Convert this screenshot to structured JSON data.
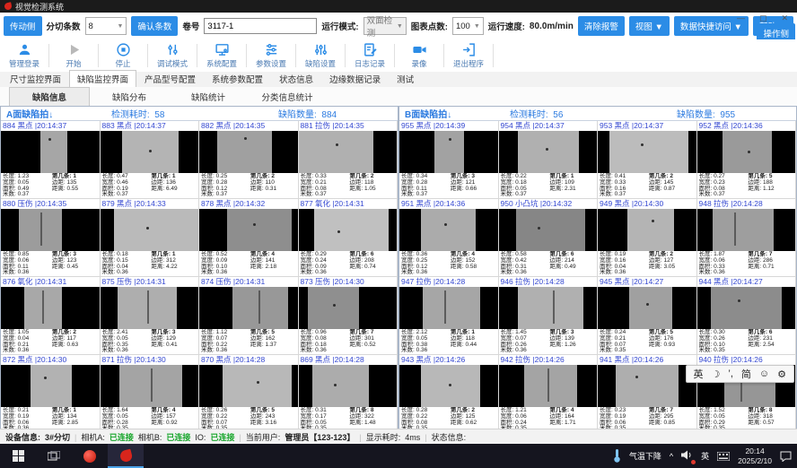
{
  "window": {
    "title": "视觉检测系统",
    "minimize": "—",
    "maximize": "▢",
    "close": "✕"
  },
  "toolbar": {
    "drive_side": "传动侧",
    "slit_count_label": "分切条数",
    "slit_count_value": "8",
    "confirm_count": "确认条数",
    "roll_label": "卷号",
    "roll_value": "3117-1",
    "run_mode_label": "运行模式:",
    "run_mode_value": "双面检测",
    "chart_points_label": "图表点数:",
    "chart_points_value": "100",
    "speed_label": "运行速度:",
    "speed_value": "80.0m/min",
    "clear_alarm": "清除报警",
    "view_menu": "视图 ▼",
    "data_access_menu": "数据快捷访问 ▼",
    "help_menu": "帮助 ▼",
    "operator_side": "操作侧"
  },
  "actionbar": {
    "items": [
      {
        "icon": "user-icon",
        "label": "管理登录"
      },
      {
        "icon": "play-icon",
        "label": "开始"
      },
      {
        "icon": "stop-icon",
        "label": "停止"
      },
      {
        "icon": "debug-icon",
        "label": "调试模式"
      },
      {
        "icon": "monitor-icon",
        "label": "系统配置"
      },
      {
        "icon": "sliders-h-icon",
        "label": "参数设置"
      },
      {
        "icon": "sliders-v-icon",
        "label": "缺陷设置"
      },
      {
        "icon": "journal-icon",
        "label": "日志记录"
      },
      {
        "icon": "camera-icon",
        "label": "录像"
      },
      {
        "icon": "exit-icon",
        "label": "退出程序"
      }
    ]
  },
  "tabs": {
    "active": 1,
    "items": [
      "尺寸监控界面",
      "缺陷监控界面",
      "产品型号配置",
      "系统参数配置",
      "状态信息",
      "边缘数据记录",
      "测试"
    ]
  },
  "subtabs": {
    "active": 0,
    "items": [
      "缺陷信息",
      "缺陷分布",
      "缺陷统计",
      "分类信息统计"
    ]
  },
  "meta_labels": {
    "length": "长度:",
    "width": "宽度:",
    "area": "面积:",
    "meter": "米数:",
    "strip": "第几条:",
    "margin": "边距:",
    "distance": "距离:"
  },
  "panel_labels": {
    "time_label": "检测耗时:",
    "count_label": "缺陷数量:",
    "sort_icon": "↓"
  },
  "panels": [
    {
      "title": "A面缺陷拍",
      "time_value": "58",
      "count_value": "884",
      "cells": [
        {
          "id": "884",
          "type": "黑点",
          "time": "20:14:37",
          "len": "1.23",
          "wid": "0.05",
          "area": "0.49",
          "meter": "0.37",
          "strip": "1",
          "margin": "135",
          "dist": "0.55",
          "img": {
            "bx": 40,
            "bw": 28,
            "bc": "#a6a6a6",
            "dot": [
              48,
              18
            ]
          }
        },
        {
          "id": "883",
          "type": "黑点",
          "time": "20:14:37",
          "len": "0.47",
          "wid": "0.46",
          "area": "0.19",
          "meter": "0.37",
          "strip": "1",
          "margin": "136",
          "dist": "6.49",
          "img": {
            "bx": 22,
            "bw": 58,
            "bc": "#b4b4b4",
            "dot": [
              50,
              45
            ]
          }
        },
        {
          "id": "882",
          "type": "黑点",
          "time": "20:14:35",
          "len": "0.25",
          "wid": "0.28",
          "area": "0.12",
          "meter": "0.37",
          "strip": "2",
          "margin": "110",
          "dist": "0.31",
          "img": {
            "bx": 18,
            "bw": 56,
            "bc": "#a0a0a0",
            "dot": [
              46,
              14
            ]
          }
        },
        {
          "id": "881",
          "type": "拉伤",
          "time": "20:14:35",
          "len": "0.33",
          "wid": "0.21",
          "area": "0.08",
          "meter": "0.37",
          "strip": "2",
          "margin": "118",
          "dist": "1.05",
          "img": {
            "bx": 0,
            "bw": 76,
            "bc": "#b0b0b0",
            "dot": [
              38,
              30
            ]
          }
        },
        {
          "id": "880",
          "type": "压伤",
          "time": "20:14:35",
          "len": "0.85",
          "wid": "0.06",
          "area": "0.11",
          "meter": "0.36",
          "strip": "3",
          "margin": "123",
          "dist": "0.45",
          "img": {
            "bx": 18,
            "bw": 44,
            "bc": "#9c9c9c",
            "scratch": 40
          }
        },
        {
          "id": "879",
          "type": "黑点",
          "time": "20:14:33",
          "len": "0.18",
          "wid": "0.15",
          "area": "0.04",
          "meter": "0.36",
          "strip": "1",
          "margin": "312",
          "dist": "4.22",
          "img": {
            "bx": 14,
            "bw": 86,
            "bc": "#bababa",
            "dot": [
              47,
              42
            ]
          }
        },
        {
          "id": "878",
          "type": "黑点",
          "time": "20:14:32",
          "len": "0.52",
          "wid": "0.09",
          "area": "0.10",
          "meter": "0.36",
          "strip": "4",
          "margin": "141",
          "dist": "2.18",
          "img": {
            "bx": 28,
            "bw": 66,
            "bc": "#8e8e8e",
            "dot": [
              55,
              35
            ]
          }
        },
        {
          "id": "877",
          "type": "氧化",
          "time": "20:14:31",
          "len": "0.29",
          "wid": "0.24",
          "area": "0.09",
          "meter": "0.36",
          "strip": "6",
          "margin": "208",
          "dist": "0.74",
          "img": {
            "bx": 16,
            "bw": 76,
            "bc": "#c0c0c0",
            "dot": [
              40,
              50
            ]
          }
        },
        {
          "id": "876",
          "type": "氧化",
          "time": "20:14:31",
          "len": "1.05",
          "wid": "0.04",
          "area": "0.21",
          "meter": "0.36",
          "strip": "2",
          "margin": "117",
          "dist": "0.63",
          "img": {
            "bx": 24,
            "bw": 38,
            "bc": "#a8a8a8",
            "scratch": 42
          }
        },
        {
          "id": "875",
          "type": "压伤",
          "time": "20:14:31",
          "len": "2.41",
          "wid": "0.05",
          "area": "0.35",
          "meter": "0.36",
          "strip": "3",
          "margin": "129",
          "dist": "0.41",
          "img": {
            "bx": 18,
            "bw": 60,
            "bc": "#aeaeae",
            "scratch": 48
          }
        },
        {
          "id": "874",
          "type": "压伤",
          "time": "20:14:31",
          "len": "1.12",
          "wid": "0.07",
          "area": "0.22",
          "meter": "0.36",
          "strip": "5",
          "margin": "162",
          "dist": "1.37",
          "img": {
            "bx": 34,
            "bw": 56,
            "bc": "#989898",
            "scratch": 60
          }
        },
        {
          "id": "873",
          "type": "压伤",
          "time": "20:14:30",
          "len": "0.96",
          "wid": "0.08",
          "area": "0.18",
          "meter": "0.36",
          "strip": "7",
          "margin": "301",
          "dist": "0.52",
          "img": {
            "bx": 10,
            "bw": 52,
            "bc": "#8f8f8f",
            "dot": [
              35,
              40
            ]
          }
        },
        {
          "id": "872",
          "type": "黑点",
          "time": "20:14:30",
          "len": "0.21",
          "wid": "0.19",
          "area": "0.06",
          "meter": "0.36",
          "strip": "1",
          "margin": "134",
          "dist": "2.85",
          "img": {
            "bx": 30,
            "bw": 42,
            "bc": "#b2b2b2",
            "dot": [
              44,
              28
            ]
          }
        },
        {
          "id": "871",
          "type": "拉伤",
          "time": "20:14:30",
          "len": "1.64",
          "wid": "0.05",
          "area": "0.28",
          "meter": "0.35",
          "strip": "4",
          "margin": "157",
          "dist": "0.92",
          "img": {
            "bx": 20,
            "bw": 64,
            "bc": "#a4a4a4",
            "scratch": 52
          }
        },
        {
          "id": "870",
          "type": "黑点",
          "time": "20:14:28",
          "len": "0.26",
          "wid": "0.22",
          "area": "0.07",
          "meter": "0.35",
          "strip": "5",
          "margin": "243",
          "dist": "3.16",
          "img": {
            "bx": 24,
            "bw": 70,
            "bc": "#b8b8b8",
            "dot": [
              58,
              38
            ]
          }
        },
        {
          "id": "869",
          "type": "黑点",
          "time": "20:14:28",
          "len": "0.31",
          "wid": "0.17",
          "area": "0.05",
          "meter": "0.35",
          "strip": "8",
          "margin": "322",
          "dist": "1.48",
          "img": {
            "bx": 14,
            "bw": 58,
            "bc": "#acacac",
            "dot": [
              36,
              44
            ]
          }
        }
      ]
    },
    {
      "title": "B面缺陷拍",
      "time_value": "56",
      "count_value": "955",
      "cells": [
        {
          "id": "955",
          "type": "黑点",
          "time": "20:14:39",
          "len": "0.34",
          "wid": "0.28",
          "area": "0.11",
          "meter": "0.37",
          "strip": "3",
          "margin": "121",
          "dist": "0.66",
          "img": {
            "bx": 36,
            "bw": 30,
            "bc": "#a2a2a2",
            "dot": [
              50,
              16
            ]
          }
        },
        {
          "id": "954",
          "type": "黑点",
          "time": "20:14:37",
          "len": "0.22",
          "wid": "0.18",
          "area": "0.05",
          "meter": "0.37",
          "strip": "1",
          "margin": "109",
          "dist": "2.31",
          "img": {
            "bx": 20,
            "bw": 62,
            "bc": "#b0b0b0",
            "dot": [
              48,
              40
            ]
          }
        },
        {
          "id": "953",
          "type": "黑点",
          "time": "20:14:37",
          "len": "0.41",
          "wid": "0.33",
          "area": "0.16",
          "meter": "0.37",
          "strip": "2",
          "margin": "145",
          "dist": "0.87",
          "img": {
            "bx": 12,
            "bw": 80,
            "bc": "#bcbcbc",
            "dot": [
              44,
              30
            ]
          }
        },
        {
          "id": "952",
          "type": "黑点",
          "time": "20:14:36",
          "len": "0.27",
          "wid": "0.23",
          "area": "0.08",
          "meter": "0.37",
          "strip": "5",
          "margin": "188",
          "dist": "1.12",
          "img": {
            "bx": 26,
            "bw": 50,
            "bc": "#9a9a9a",
            "dot": [
              52,
              46
            ]
          }
        },
        {
          "id": "951",
          "type": "黑点",
          "time": "20:14:36",
          "len": "0.36",
          "wid": "0.25",
          "area": "0.12",
          "meter": "0.36",
          "strip": "4",
          "margin": "152",
          "dist": "0.58",
          "img": {
            "bx": 22,
            "bw": 56,
            "bc": "#ababab",
            "dot": [
              46,
              34
            ]
          }
        },
        {
          "id": "950",
          "type": "小凸坑",
          "time": "20:14:32",
          "len": "0.58",
          "wid": "0.42",
          "area": "0.31",
          "meter": "0.36",
          "strip": "6",
          "margin": "214",
          "dist": "0.49",
          "img": {
            "bx": 18,
            "bw": 70,
            "bc": "#868686",
            "dot": [
              40,
              42
            ]
          }
        },
        {
          "id": "949",
          "type": "黑点",
          "time": "20:14:30",
          "len": "0.19",
          "wid": "0.16",
          "area": "0.04",
          "meter": "0.36",
          "strip": "2",
          "margin": "127",
          "dist": "3.05",
          "img": {
            "bx": 30,
            "bw": 48,
            "bc": "#b4b4b4",
            "dot": [
              55,
              25
            ]
          }
        },
        {
          "id": "948",
          "type": "拉伤",
          "time": "20:14:28",
          "len": "1.87",
          "wid": "0.06",
          "area": "0.33",
          "meter": "0.36",
          "strip": "7",
          "margin": "286",
          "dist": "0.71",
          "img": {
            "bx": 16,
            "bw": 62,
            "bc": "#9e9e9e",
            "scratch": 38
          }
        },
        {
          "id": "947",
          "type": "拉伤",
          "time": "20:14:28",
          "len": "2.12",
          "wid": "0.05",
          "area": "0.38",
          "meter": "0.36",
          "strip": "1",
          "margin": "118",
          "dist": "0.44",
          "img": {
            "bx": 24,
            "bw": 58,
            "bc": "#a6a6a6",
            "scratch": 46
          }
        },
        {
          "id": "946",
          "type": "拉伤",
          "time": "20:14:28",
          "len": "1.45",
          "wid": "0.07",
          "area": "0.26",
          "meter": "0.36",
          "strip": "3",
          "margin": "139",
          "dist": "1.26",
          "img": {
            "bx": 20,
            "bw": 66,
            "bc": "#b0b0b0",
            "scratch": 55
          }
        },
        {
          "id": "945",
          "type": "黑点",
          "time": "20:14:27",
          "len": "0.24",
          "wid": "0.21",
          "area": "0.07",
          "meter": "0.35",
          "strip": "5",
          "margin": "176",
          "dist": "0.93",
          "img": {
            "bx": 32,
            "bw": 44,
            "bc": "#a0a0a0",
            "dot": [
              49,
              38
            ]
          }
        },
        {
          "id": "944",
          "type": "黑点",
          "time": "20:14:27",
          "len": "0.30",
          "wid": "0.26",
          "area": "0.10",
          "meter": "0.35",
          "strip": "6",
          "margin": "231",
          "dist": "2.54",
          "img": {
            "bx": 14,
            "bw": 72,
            "bc": "#8c8c8c",
            "dot": [
              42,
              30
            ]
          }
        },
        {
          "id": "943",
          "type": "黑点",
          "time": "20:14:26",
          "len": "0.28",
          "wid": "0.22",
          "area": "0.08",
          "meter": "0.35",
          "strip": "2",
          "margin": "125",
          "dist": "0.62",
          "img": {
            "bx": 22,
            "bw": 60,
            "bc": "#b8b8b8",
            "dot": [
              50,
              44
            ]
          }
        },
        {
          "id": "942",
          "type": "拉伤",
          "time": "20:14:26",
          "len": "1.21",
          "wid": "0.06",
          "area": "0.24",
          "meter": "0.35",
          "strip": "4",
          "margin": "164",
          "dist": "1.71",
          "img": {
            "bx": 26,
            "bw": 54,
            "bc": "#a4a4a4",
            "scratch": 50
          }
        },
        {
          "id": "941",
          "type": "黑点",
          "time": "20:14:26",
          "len": "0.23",
          "wid": "0.19",
          "area": "0.06",
          "meter": "0.35",
          "strip": "7",
          "margin": "295",
          "dist": "0.85",
          "img": {
            "bx": 18,
            "bw": 64,
            "bc": "#aeaeae",
            "dot": [
              38,
              26
            ]
          }
        },
        {
          "id": "940",
          "type": "拉伤",
          "time": "20:14:26",
          "len": "1.52",
          "wid": "0.05",
          "area": "0.29",
          "meter": "0.35",
          "strip": "8",
          "margin": "318",
          "dist": "0.57",
          "img": {
            "bx": 28,
            "bw": 52,
            "bc": "#969696",
            "scratch": 44
          }
        }
      ]
    }
  ],
  "statusbar": {
    "device_label": "设备信息:",
    "device_value": "3#分切",
    "camA_label": "相机A:",
    "camA_status": "已连接",
    "camB_label": "相机B:",
    "camB_status": "已连接",
    "io_label": "IO:",
    "io_status": "已连接",
    "user_label": "当前用户:",
    "user_value": "管理员【123-123】",
    "display_label": "显示耗时:",
    "display_value": "4ms",
    "status_label": "状态信息:"
  },
  "taskbar": {
    "weather": "气温下降",
    "chevron": "^",
    "lang": "英",
    "time": "20:14",
    "date": "2025/2/10"
  },
  "ime": {
    "lang": "英",
    "moon": "☽",
    "punct": "’,",
    "mode": "简",
    "emoji": "☺",
    "gear": "⚙"
  },
  "colors": {
    "accent_blue": "#2b8ce6",
    "link_blue": "#3347d1",
    "panel_blue": "#2c7be0",
    "connected_green": "#17a62b",
    "titlebar": "#1b1b1b",
    "taskbar": "#15151f",
    "logo_red": "#d8251c"
  }
}
